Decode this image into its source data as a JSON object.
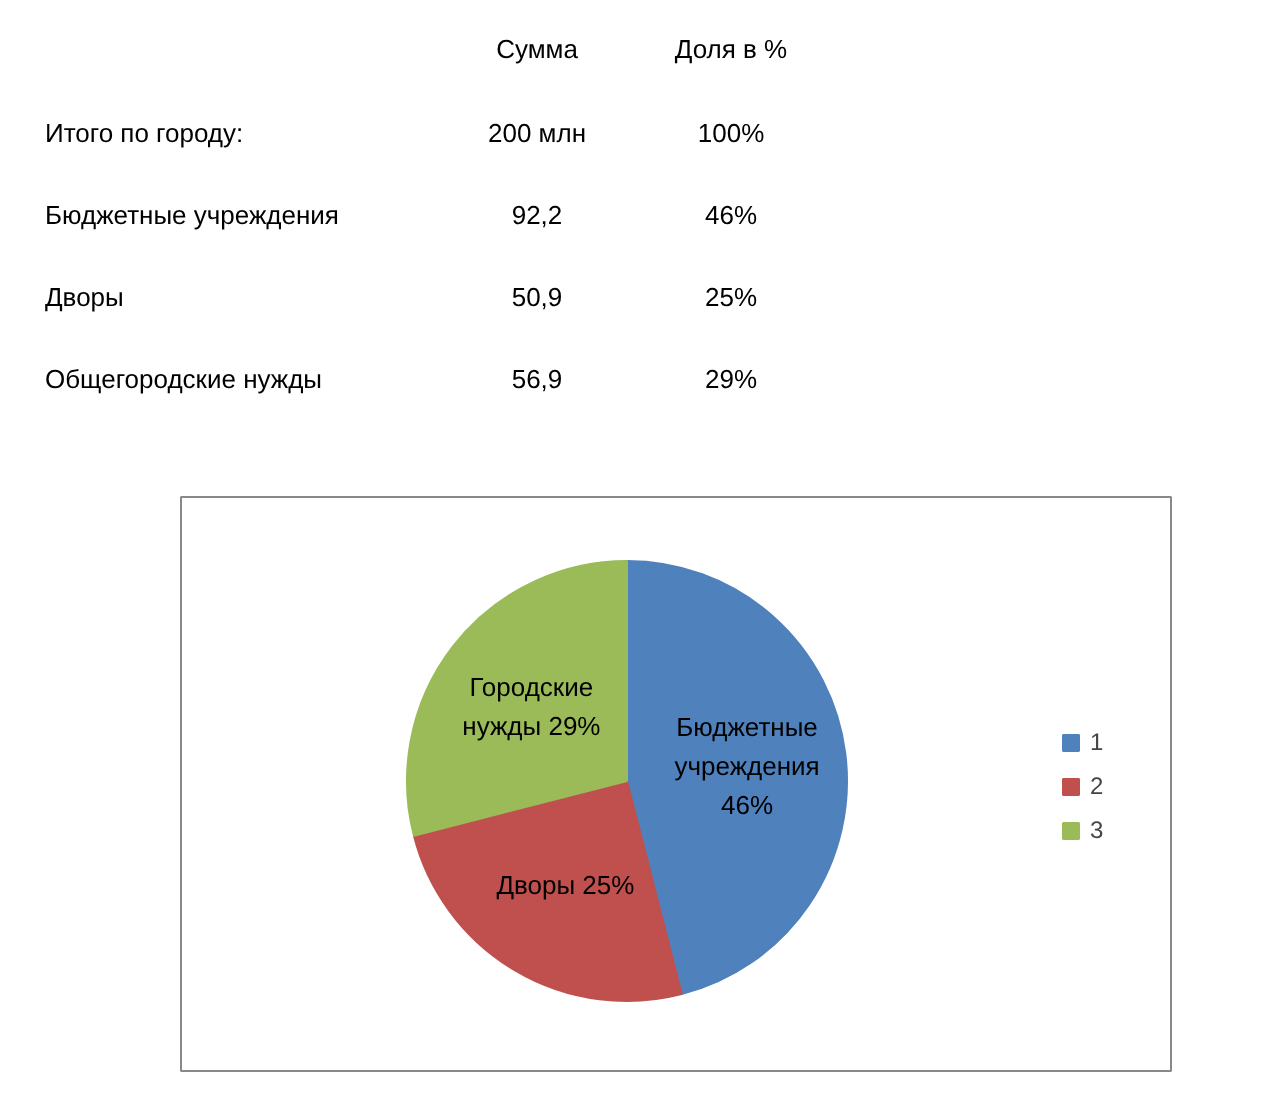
{
  "chart_data": {
    "type": "pie",
    "categories": [
      "1",
      "2",
      "3"
    ],
    "values": [
      46,
      25,
      29
    ],
    "colors": [
      "#4f81bd",
      "#c0504d",
      "#9bbb59"
    ],
    "value_labels": [
      "Бюджетные\nучреждения\n46%",
      "Дворы 25%",
      "Городские\nнужды 29%"
    ],
    "legend": "right",
    "annotations": [
      "Сумма",
      "Доля в %",
      "Итого по городу:",
      "200 млн",
      "100%",
      "Бюджетные учреждения",
      "92,2",
      "46%",
      "Дворы",
      "50,9",
      "25%",
      "Общегородские нужды",
      "56,9",
      "29%"
    ]
  }
}
